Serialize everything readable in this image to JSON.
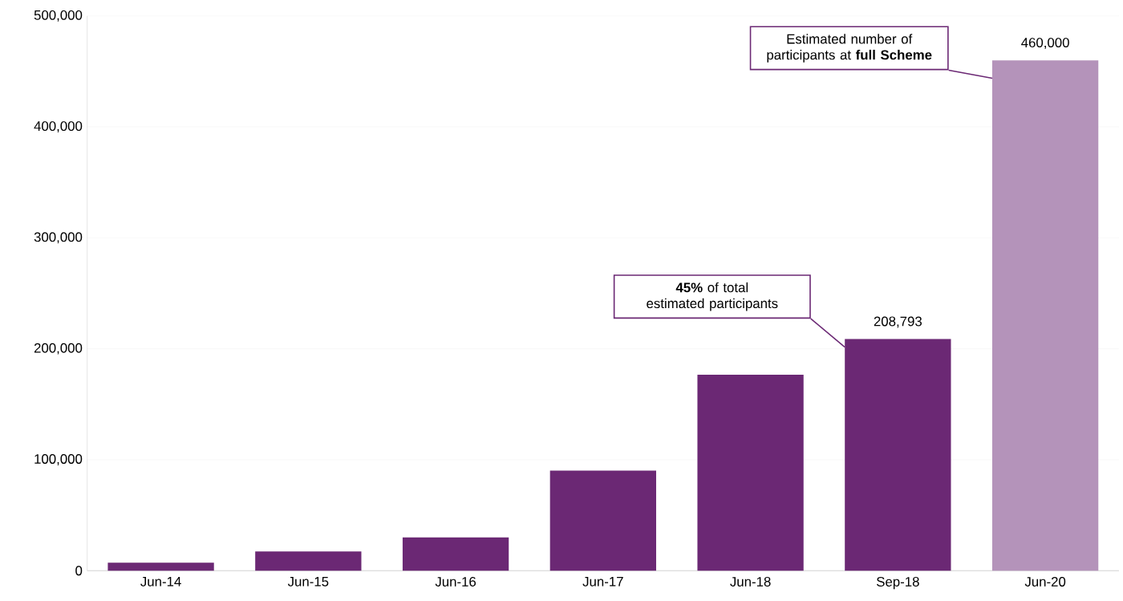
{
  "chart_data": {
    "type": "bar",
    "categories": [
      "Jun-14",
      "Jun-15",
      "Jun-16",
      "Jun-17",
      "Jun-18",
      "Sep-18",
      "Jun-20"
    ],
    "series": [
      {
        "color": "#6b2874",
        "values": [
          7200,
          17300,
          30000,
          90200,
          176700,
          208793,
          null
        ],
        "value_labels": [
          null,
          null,
          null,
          null,
          null,
          "208,793",
          null
        ]
      },
      {
        "color": "#b493ba",
        "values": [
          null,
          null,
          null,
          null,
          null,
          null,
          460000
        ],
        "value_labels": [
          null,
          null,
          null,
          null,
          null,
          null,
          "460,000"
        ]
      }
    ],
    "ylim": [
      0,
      500000
    ],
    "yticks": [
      {
        "value": 0,
        "label": "0"
      },
      {
        "value": 100000,
        "label": "100,000"
      },
      {
        "value": 200000,
        "label": "200,000"
      },
      {
        "value": 300000,
        "label": "300,000"
      },
      {
        "value": 400000,
        "label": "400,000"
      },
      {
        "value": 500000,
        "label": "500,000"
      }
    ],
    "grid": "y",
    "annotations": [
      "Estimated number of participants at **full Scheme**",
      "**45%** of total estimated participants"
    ]
  }
}
